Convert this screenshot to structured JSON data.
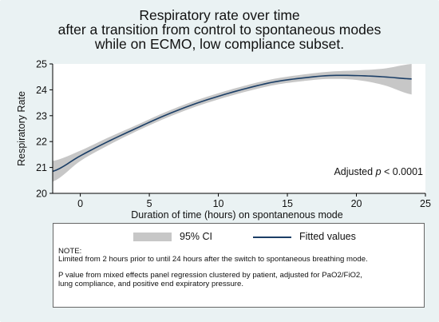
{
  "title_lines": [
    "Respiratory rate over time",
    "after a transition from control to spontaneous modes",
    "while on ECMO, low compliance subset."
  ],
  "annotation": {
    "prefix": "Adjusted ",
    "italic": "p",
    "suffix": " < 0.0001"
  },
  "legend": {
    "ci_label": "95% CI",
    "fit_label": "Fitted values"
  },
  "notes": {
    "heading": "NOTE:",
    "line1": "Limited from 2 hours prior to until 24 hours after the switch to spontaneous breathing mode.",
    "line2": "P value from mixed effects panel regression clustered by patient, adjusted for PaO2/FiO2,\nlung compliance, and positive end expiratory pressure."
  },
  "colors": {
    "ci_band": "#c7c7c7",
    "fitted_line": "#1b3e66",
    "plot_bg": "#ffffff",
    "figure_bg": "#eaf2f3"
  },
  "chart_data": {
    "type": "line",
    "title": "Respiratory rate over time after a transition from control to spontaneous modes while on ECMO, low compliance subset.",
    "xlabel": "Duration of time (hours) on spontanenous mode",
    "ylabel": "Respiratory Rate",
    "xlim": [
      -2,
      25
    ],
    "ylim": [
      20,
      25
    ],
    "xticks": [
      0,
      5,
      10,
      15,
      20,
      25
    ],
    "yticks": [
      20,
      21,
      22,
      23,
      24,
      25
    ],
    "grid": false,
    "legend_position": "bottom",
    "series": [
      {
        "name": "Fitted values",
        "x": [
          -2,
          0,
          2,
          4,
          6,
          8,
          10,
          12,
          14,
          16,
          18,
          20,
          22,
          24
        ],
        "y": [
          20.85,
          21.45,
          22.0,
          22.5,
          22.98,
          23.4,
          23.75,
          24.05,
          24.3,
          24.45,
          24.55,
          24.55,
          24.5,
          24.42
        ]
      },
      {
        "name": "95% CI",
        "x": [
          -2,
          0,
          2,
          4,
          6,
          8,
          10,
          12,
          14,
          16,
          18,
          20,
          22,
          24
        ],
        "lower": [
          20.45,
          21.25,
          21.85,
          22.38,
          22.86,
          23.28,
          23.63,
          23.93,
          24.18,
          24.33,
          24.42,
          24.38,
          24.18,
          23.82
        ],
        "upper": [
          21.25,
          21.65,
          22.15,
          22.62,
          23.1,
          23.52,
          23.87,
          24.17,
          24.42,
          24.58,
          24.7,
          24.75,
          24.82,
          25.0
        ]
      }
    ]
  }
}
